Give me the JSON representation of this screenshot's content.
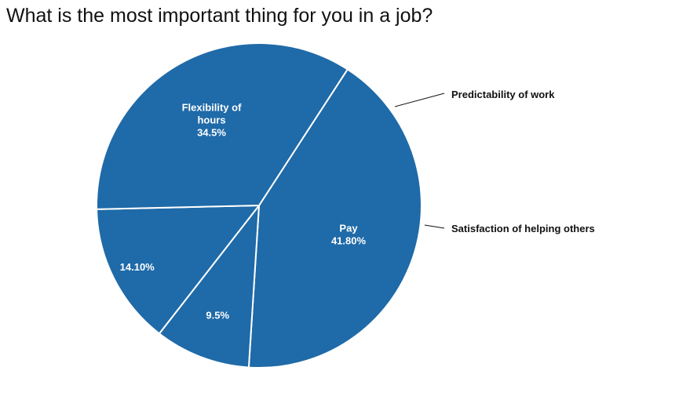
{
  "chart_data": {
    "type": "pie",
    "title": "What is the most important thing for you in a job?",
    "color": "#1f6aa8",
    "slices": [
      {
        "label_lines": [
          "Pay"
        ],
        "value": 41.8,
        "value_label": "41.80%",
        "label_position": "inside"
      },
      {
        "label_lines": [
          "Predictability of work"
        ],
        "value": 9.5,
        "value_label": "9.5%",
        "label_position": "outside"
      },
      {
        "label_lines": [
          "Satisfaction of helping others"
        ],
        "value": 14.1,
        "value_label": "14.10%",
        "label_position": "outside"
      },
      {
        "label_lines": [
          "Flexibility of",
          "hours"
        ],
        "value": 34.5,
        "value_label": "34.5%",
        "label_position": "inside"
      }
    ]
  }
}
